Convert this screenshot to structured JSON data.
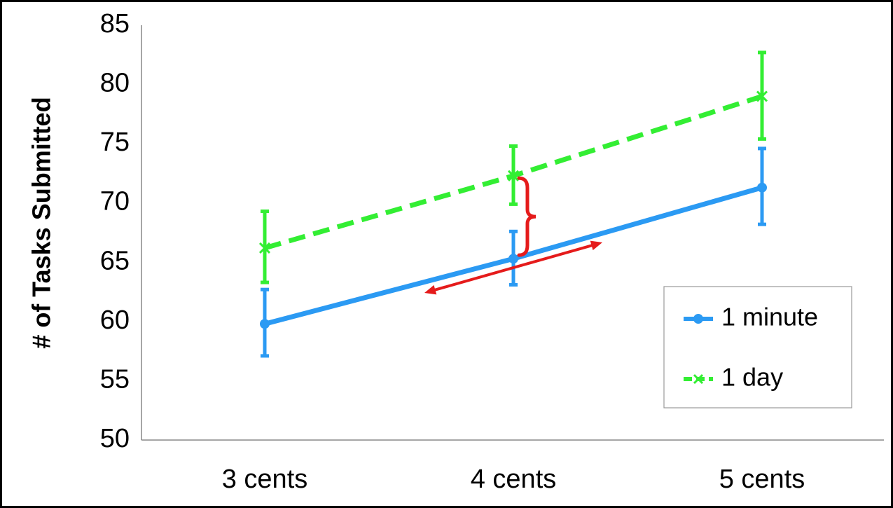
{
  "chart_data": {
    "type": "line",
    "ylabel": "# of Tasks Submitted",
    "xlabel": "",
    "ylim": [
      50,
      85
    ],
    "yticks": [
      "50",
      "55",
      "60",
      "65",
      "70",
      "75",
      "80",
      "85"
    ],
    "categories": [
      "3 cents",
      "4 cents",
      "5 cents"
    ],
    "series": [
      {
        "name": "1 minute",
        "color": "#2b9af3",
        "style": "solid",
        "marker": "circle",
        "values": [
          59.8,
          65.3,
          71.3
        ],
        "err_low": [
          57.1,
          63.1,
          68.2
        ],
        "err_high": [
          62.7,
          67.6,
          74.6
        ]
      },
      {
        "name": "1 day",
        "color": "#33ee33",
        "style": "dashed",
        "marker": "x",
        "values": [
          66.2,
          72.3,
          79.0
        ],
        "err_low": [
          63.3,
          69.9,
          75.4
        ],
        "err_high": [
          69.3,
          74.8,
          82.7
        ]
      }
    ],
    "annotation_color": "#e51b1b",
    "legend_position": "bottom-right",
    "grid": false
  }
}
